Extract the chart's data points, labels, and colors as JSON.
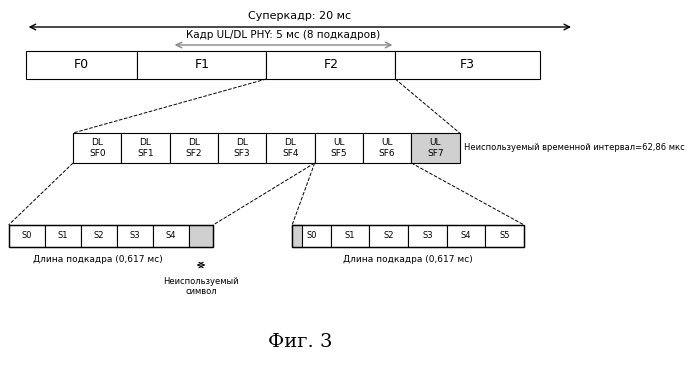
{
  "title": "Фиг. 3",
  "superframe_label": "Суперкадр: 20 мс",
  "frame_label": "Кадр UL/DL PHY: 5 мс (8 подкадров)",
  "unused_interval_label": "Неиспользуемый временной интервал=62,86 мкс",
  "subframe_len_label1": "Длина подкадра (0,617 мс)",
  "subframe_len_label2": "Длина подкадра (0,617 мс)",
  "unused_symbol_label": "Неиспользуемый\nсимвол",
  "row1_frames": [
    "F0",
    "F1",
    "F2",
    "F3"
  ],
  "row2_subframes": [
    "DL\nSF0",
    "DL\nSF1",
    "DL\nSF2",
    "DL\nSF3",
    "DL\nSF4",
    "UL\nSF5",
    "UL\nSF6",
    "UL\nSF7"
  ],
  "row3_left_symbols": [
    "S0",
    "S1",
    "S2",
    "S3",
    "S4"
  ],
  "row3_right_symbols": [
    "S0",
    "S1",
    "S2",
    "S3",
    "S4",
    "S5"
  ],
  "bg_color": "#ffffff",
  "box_facecolor": "#ffffff",
  "hatch_color": "#aaaaaa",
  "border_color": "#000000",
  "arrow_color": "#000000",
  "text_color": "#000000",
  "font_size": 7,
  "title_font_size": 12
}
